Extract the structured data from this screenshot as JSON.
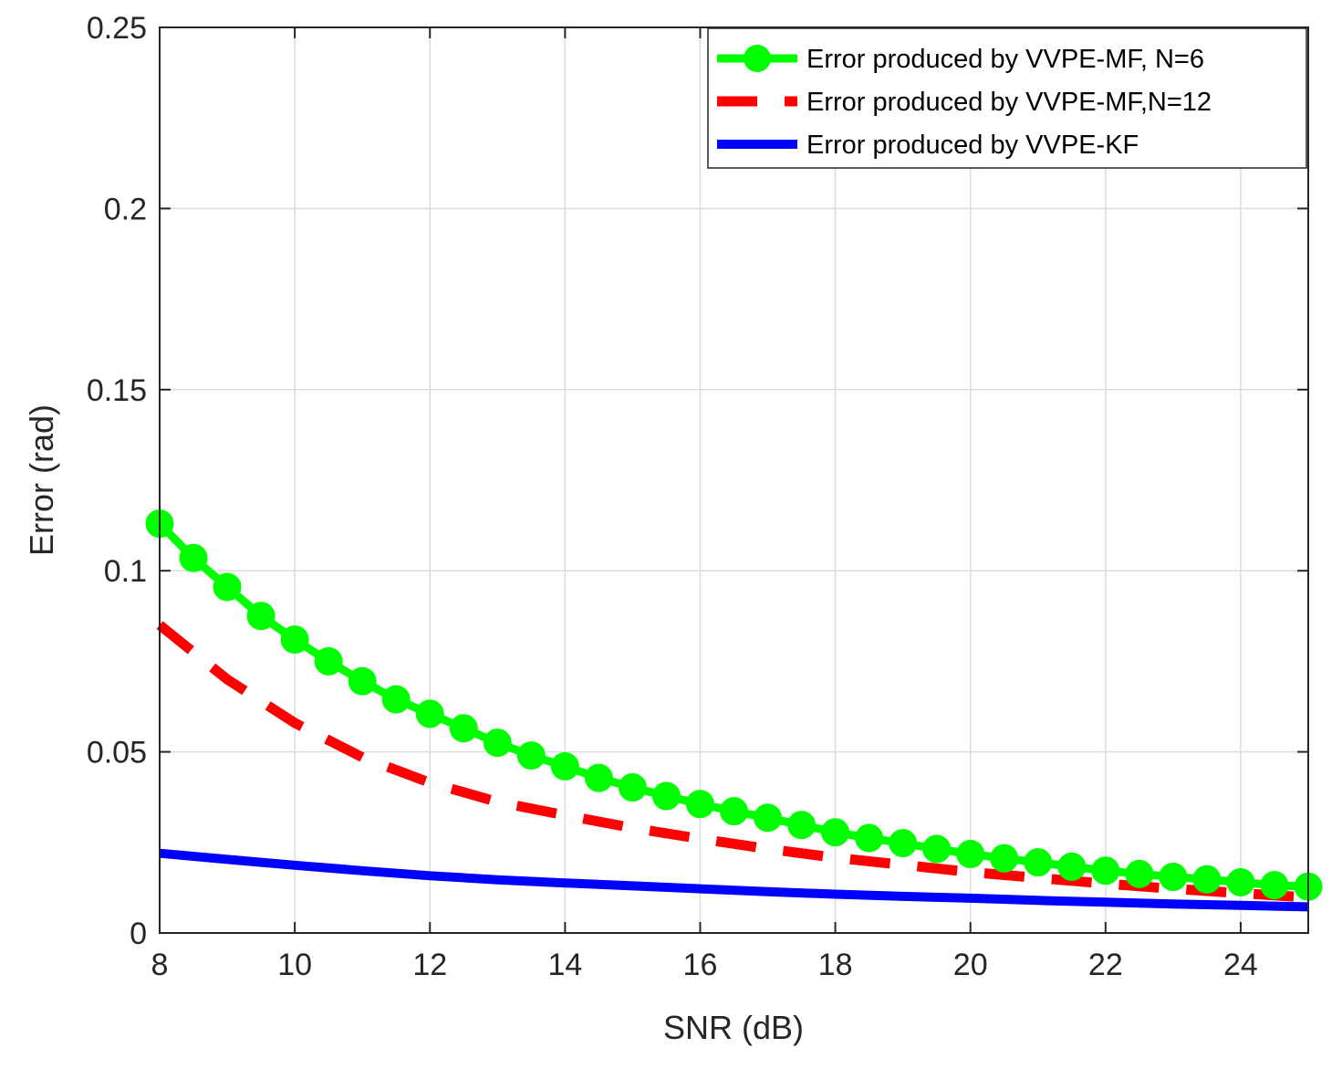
{
  "chart_data": {
    "type": "line",
    "title": "",
    "xlabel": "SNR (dB)",
    "ylabel": "Error (rad)",
    "xlim": [
      8,
      25
    ],
    "ylim": [
      0,
      0.25
    ],
    "x_ticks": [
      8,
      10,
      12,
      14,
      16,
      18,
      20,
      22,
      24
    ],
    "x_tick_labels": [
      "8",
      "10",
      "12",
      "14",
      "16",
      "18",
      "20",
      "22",
      "24"
    ],
    "y_ticks": [
      0,
      0.05,
      0.1,
      0.15,
      0.2,
      0.25
    ],
    "y_tick_labels": [
      "0",
      "0.05",
      "0.1",
      "0.15",
      "0.2",
      "0.25"
    ],
    "grid": true,
    "legend_position": "top-right",
    "series": [
      {
        "name": "Error produced by VVPE-MF, N=6",
        "color": "#00ff00",
        "style": "solid-with-circle-markers",
        "x": [
          8,
          8.5,
          9,
          9.5,
          10,
          10.5,
          11,
          11.5,
          12,
          12.5,
          13,
          13.5,
          14,
          14.5,
          15,
          15.5,
          16,
          16.5,
          17,
          17.5,
          18,
          18.5,
          19,
          19.5,
          20,
          20.5,
          21,
          21.5,
          22,
          22.5,
          23,
          23.5,
          24,
          24.5,
          25
        ],
        "values": [
          0.113,
          0.1035,
          0.0955,
          0.0875,
          0.081,
          0.075,
          0.0695,
          0.0645,
          0.0605,
          0.0565,
          0.0525,
          0.049,
          0.046,
          0.0428,
          0.0402,
          0.0378,
          0.0356,
          0.0336,
          0.0318,
          0.0298,
          0.0278,
          0.0262,
          0.0248,
          0.0232,
          0.0218,
          0.0206,
          0.0195,
          0.0183,
          0.0172,
          0.0163,
          0.0155,
          0.0148,
          0.014,
          0.0132,
          0.0128
        ]
      },
      {
        "name": "Error produced by VVPE-MF,N=12",
        "color": "#ff0000",
        "style": "dashed",
        "x": [
          8,
          9,
          10,
          11,
          12,
          13,
          14,
          15,
          16,
          17,
          18,
          19,
          20,
          21,
          22,
          23,
          24,
          25
        ],
        "values": [
          0.085,
          0.07,
          0.058,
          0.0485,
          0.0415,
          0.0362,
          0.0325,
          0.029,
          0.026,
          0.0232,
          0.0208,
          0.0188,
          0.0168,
          0.0152,
          0.0136,
          0.0122,
          0.011,
          0.0098
        ]
      },
      {
        "name": "Error produced by VVPE-KF",
        "color": "#0000ff",
        "style": "solid",
        "x": [
          8,
          9,
          10,
          11,
          12,
          13,
          14,
          15,
          16,
          17,
          18,
          19,
          20,
          21,
          22,
          23,
          24,
          25
        ],
        "values": [
          0.022,
          0.0203,
          0.0187,
          0.0172,
          0.0158,
          0.0147,
          0.0138,
          0.013,
          0.0122,
          0.0114,
          0.0107,
          0.0101,
          0.0096,
          0.009,
          0.0085,
          0.008,
          0.0076,
          0.0072
        ]
      }
    ]
  }
}
